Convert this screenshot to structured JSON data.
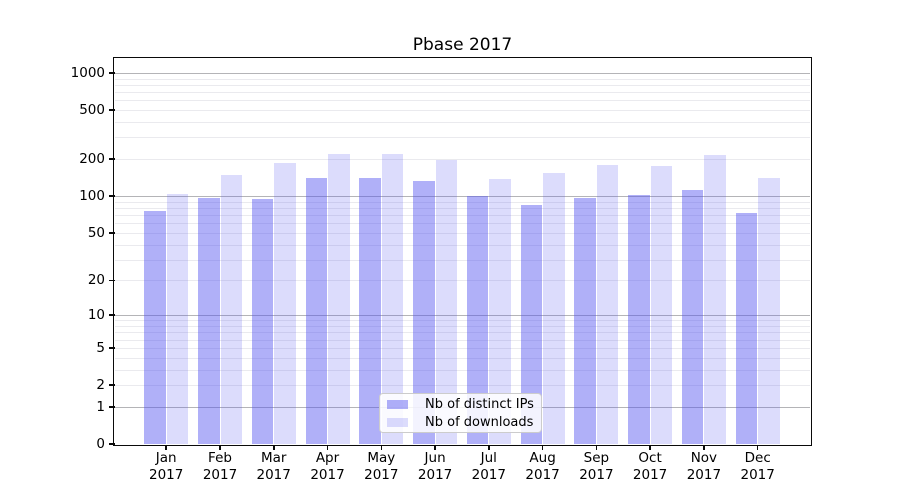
{
  "chart_data": {
    "type": "bar",
    "title": "Pbase 2017",
    "categories": [
      "Jan",
      "Feb",
      "Mar",
      "Apr",
      "May",
      "Jun",
      "Jul",
      "Aug",
      "Sep",
      "Oct",
      "Nov",
      "Dec"
    ],
    "year": "2017",
    "series": [
      {
        "name": "Nb of distinct IPs",
        "key": "distinct-ips",
        "color": "rgba(80,80,240,0.45)",
        "values": [
          76,
          96,
          94,
          141,
          141,
          132,
          101,
          85,
          97,
          103,
          112,
          73
        ]
      },
      {
        "name": "Nb of downloads",
        "key": "downloads",
        "color": "rgba(80,80,240,0.20)",
        "values": [
          104,
          150,
          185,
          220,
          220,
          198,
          138,
          155,
          178,
          175,
          215,
          140
        ]
      }
    ],
    "yscale": "log1p",
    "yticks": [
      0,
      1,
      2,
      5,
      10,
      20,
      50,
      100,
      200,
      500,
      1000
    ],
    "ylim": [
      0,
      1300
    ],
    "xlabel": "",
    "ylabel": "",
    "grid": true,
    "legend_position": "lower center"
  }
}
